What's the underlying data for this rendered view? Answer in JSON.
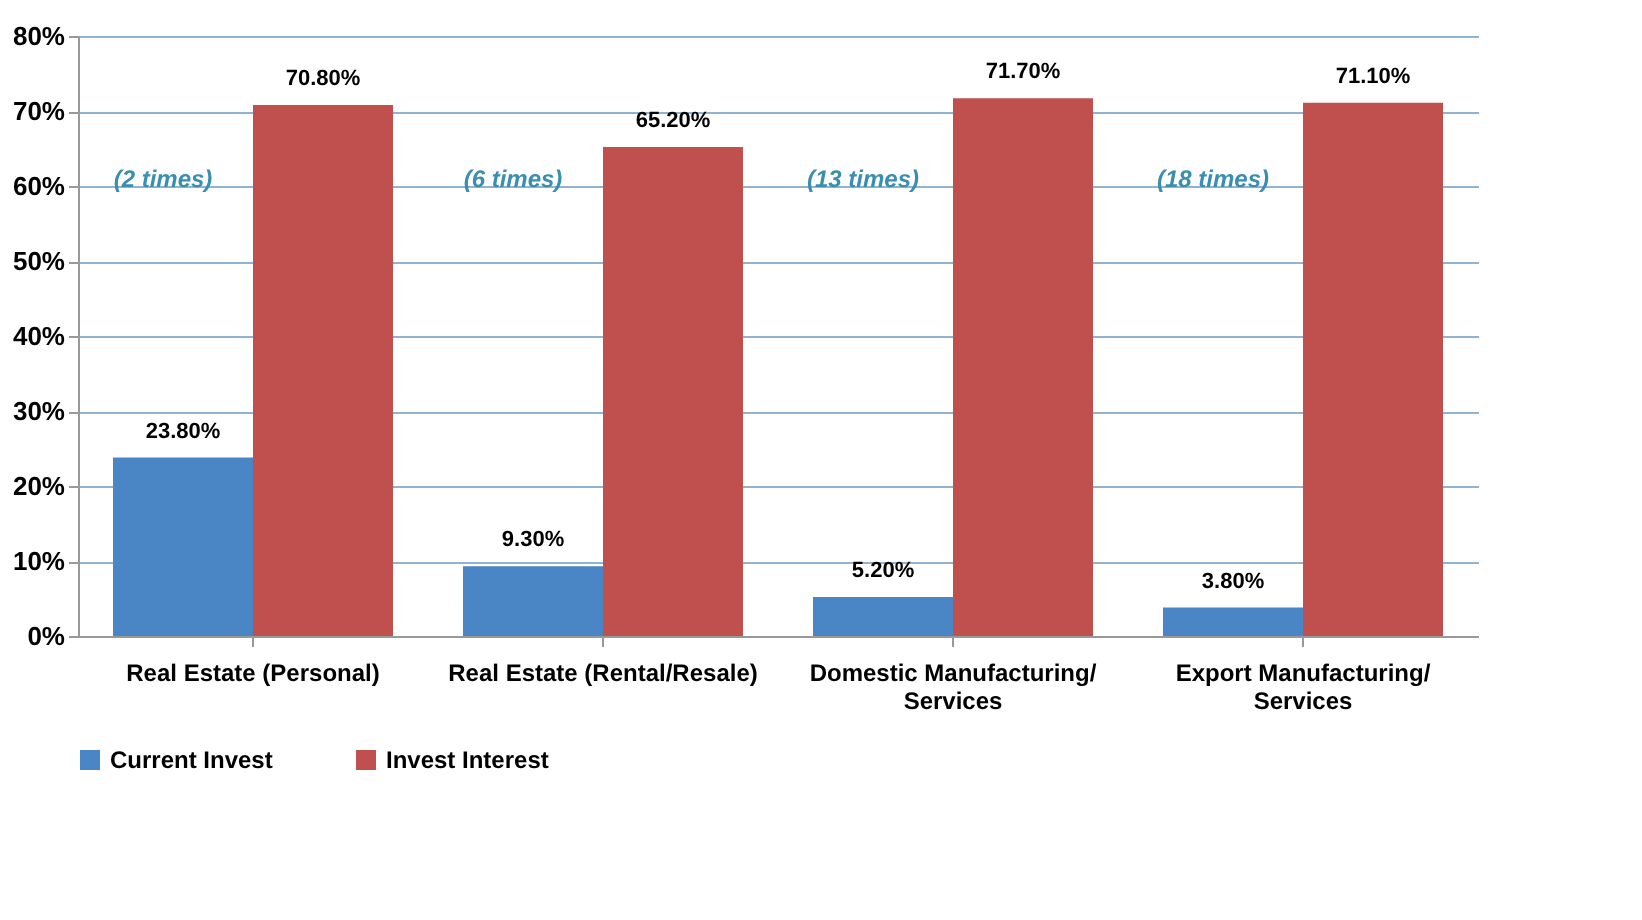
{
  "chart_data": {
    "type": "bar",
    "categories": [
      "Real Estate (Personal)",
      "Real Estate (Rental/Resale)",
      "Domestic Manufacturing/ Services",
      "Export Manufacturing/ Services"
    ],
    "series": [
      {
        "name": "Current Invest",
        "color": "#4a86c5",
        "values": [
          23.8,
          9.3,
          5.2,
          3.8
        ],
        "value_labels": [
          "23.80%",
          "9.30%",
          "5.20%",
          "3.80%"
        ]
      },
      {
        "name": "Invest Interest",
        "color": "#c0504d",
        "values": [
          70.8,
          65.2,
          71.7,
          71.1
        ],
        "value_labels": [
          "70.80%",
          "65.20%",
          "71.70%",
          "71.10%"
        ]
      }
    ],
    "ylim": [
      0,
      80
    ],
    "yticks": [
      {
        "value": 0,
        "label": "0%"
      },
      {
        "value": 10,
        "label": "10%"
      },
      {
        "value": 20,
        "label": "20%"
      },
      {
        "value": 30,
        "label": "30%"
      },
      {
        "value": 40,
        "label": "40%"
      },
      {
        "value": 50,
        "label": "50%"
      },
      {
        "value": 60,
        "label": "60%"
      },
      {
        "value": 70,
        "label": "70%"
      },
      {
        "value": 80,
        "label": "80%"
      }
    ],
    "annotations": [
      {
        "text": "(2 times)",
        "x": "Real Estate (Personal)",
        "y": 61
      },
      {
        "text": "(6 times)",
        "x": "Real Estate (Rental/Resale)",
        "y": 61
      },
      {
        "text": "(13 times)",
        "x": "Domestic Manufacturing/ Services",
        "y": 61
      },
      {
        "text": "(18 times)",
        "x": "Export Manufacturing/ Services",
        "y": 61
      }
    ],
    "grid": "y",
    "legend": "bottom"
  }
}
